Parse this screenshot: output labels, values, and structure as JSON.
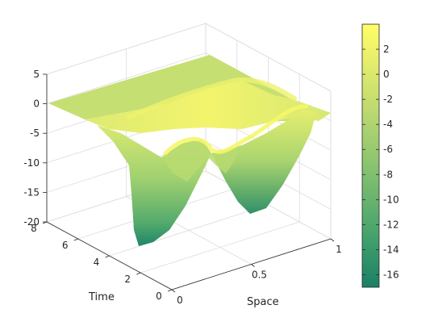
{
  "chart_data": {
    "type": "surface",
    "title": "",
    "xlabel": "Space",
    "ylabel": "Time",
    "zlabel": "",
    "xlim": [
      0,
      1
    ],
    "ylim": [
      0,
      8
    ],
    "zlim": [
      -20,
      5
    ],
    "x_ticks": [
      {
        "value": 0,
        "label": "0"
      },
      {
        "value": 0.5,
        "label": "0.5"
      },
      {
        "value": 1,
        "label": "1"
      }
    ],
    "y_ticks": [
      {
        "value": 0,
        "label": "0"
      },
      {
        "value": 2,
        "label": "2"
      },
      {
        "value": 4,
        "label": "4"
      },
      {
        "value": 6,
        "label": "6"
      },
      {
        "value": 8,
        "label": "8"
      }
    ],
    "z_ticks": [
      {
        "value": 5,
        "label": "5"
      },
      {
        "value": 0,
        "label": "0"
      },
      {
        "value": -5,
        "label": "-5"
      },
      {
        "value": -10,
        "label": "-10"
      },
      {
        "value": -15,
        "label": "-15"
      },
      {
        "value": -20,
        "label": "-20"
      }
    ],
    "grid": true,
    "colormap": {
      "name": "summer-like",
      "colors": [
        "#1a8066",
        "#3a9a6c",
        "#66b36e",
        "#99cc6f",
        "#cce070",
        "#f4f46a",
        "#ffff66"
      ],
      "clim": [
        -17,
        4
      ],
      "ticks": [
        {
          "value": 2,
          "label": "2"
        },
        {
          "value": 0,
          "label": "0"
        },
        {
          "value": -2,
          "label": "-2"
        },
        {
          "value": -4,
          "label": "-4"
        },
        {
          "value": -6,
          "label": "-6"
        },
        {
          "value": -8,
          "label": "-8"
        },
        {
          "value": -10,
          "label": "-10"
        },
        {
          "value": -12,
          "label": "-12"
        },
        {
          "value": -14,
          "label": "-14"
        },
        {
          "value": -16,
          "label": "-16"
        }
      ]
    },
    "surface": {
      "description_values_time_slices": [
        {
          "time": 8,
          "x": [
            0,
            0.25,
            0.5,
            0.75,
            1
          ],
          "z": [
            0,
            0.5,
            1,
            0.5,
            0
          ]
        },
        {
          "time": 6,
          "x": [
            0,
            0.25,
            0.5,
            0.75,
            1
          ],
          "z": [
            0,
            1.5,
            2,
            1.5,
            0
          ]
        },
        {
          "time": 4,
          "x": [
            0,
            0.25,
            0.5,
            0.75,
            1
          ],
          "z": [
            0,
            -3,
            0,
            -3,
            0
          ]
        },
        {
          "time": 2,
          "x": [
            0,
            0.25,
            0.5,
            0.75,
            1
          ],
          "z": [
            0,
            -12,
            -2,
            -12,
            0
          ]
        },
        {
          "time": 0,
          "x": [
            0,
            0.25,
            0.5,
            0.75,
            1
          ],
          "z": [
            0,
            -17,
            -4,
            -17,
            0
          ]
        }
      ]
    }
  }
}
